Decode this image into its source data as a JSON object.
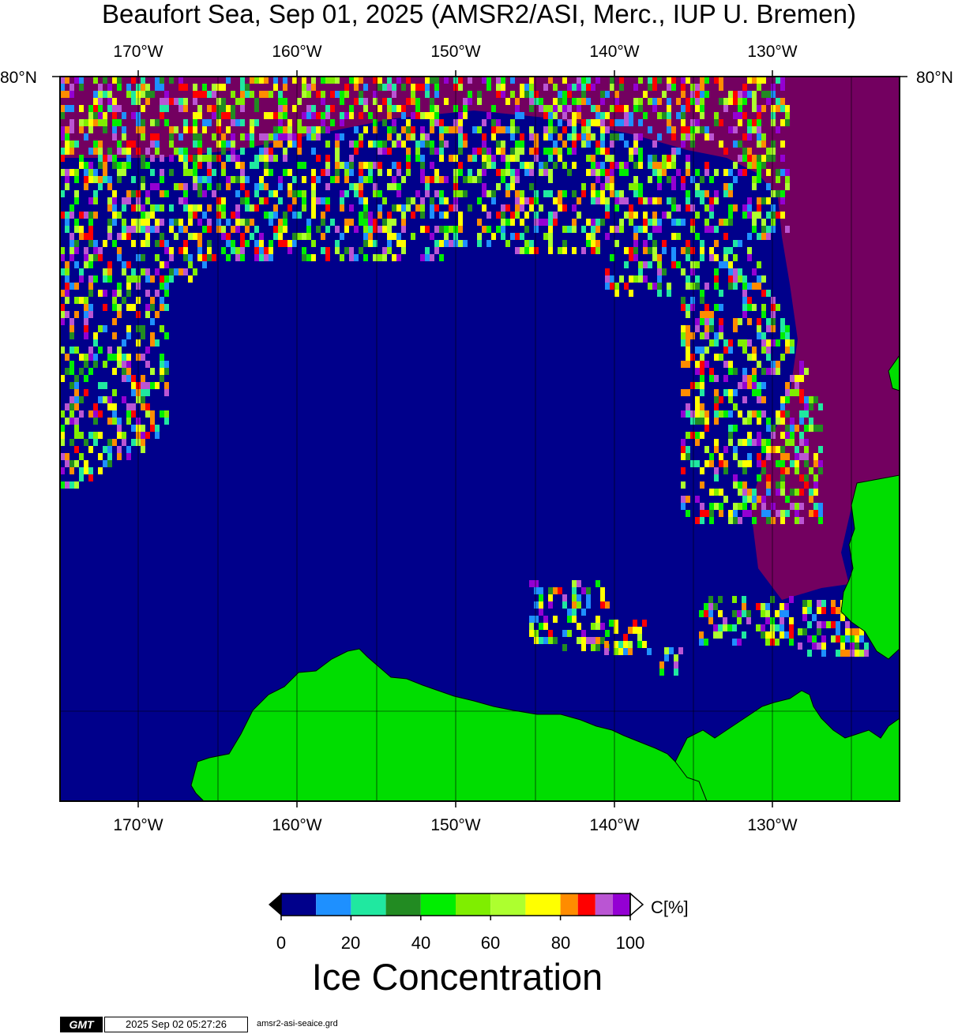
{
  "title": "Beaufort Sea, Sep 01, 2025 (AMSR2/ASI, Merc., IUP U. Bremen)",
  "longitude_ticks": [
    "170°W",
    "160°W",
    "150°W",
    "140°W",
    "130°W"
  ],
  "latitude_ticks": {
    "left": "80°N",
    "right": "80°N"
  },
  "colorbar": {
    "tick_labels": [
      "0",
      "20",
      "40",
      "60",
      "80",
      "100"
    ],
    "unit": "C[%]",
    "title": "Ice Concentration",
    "colors": [
      "#00008b",
      "#1e90ff",
      "#20e8a0",
      "#228b22",
      "#00ee00",
      "#7fee00",
      "#adff2f",
      "#ffff00",
      "#ff8c00",
      "#ff0000",
      "#ba55d3",
      "#9400d3"
    ]
  },
  "colors": {
    "ocean": "#00008b",
    "land": "#00dd00",
    "consolidated_ice": "#730060"
  },
  "footer": {
    "logo": "GMT",
    "timestamp": "2025 Sep 02 05:27:26",
    "filename": "amsr2-asi-seaice.grd"
  }
}
